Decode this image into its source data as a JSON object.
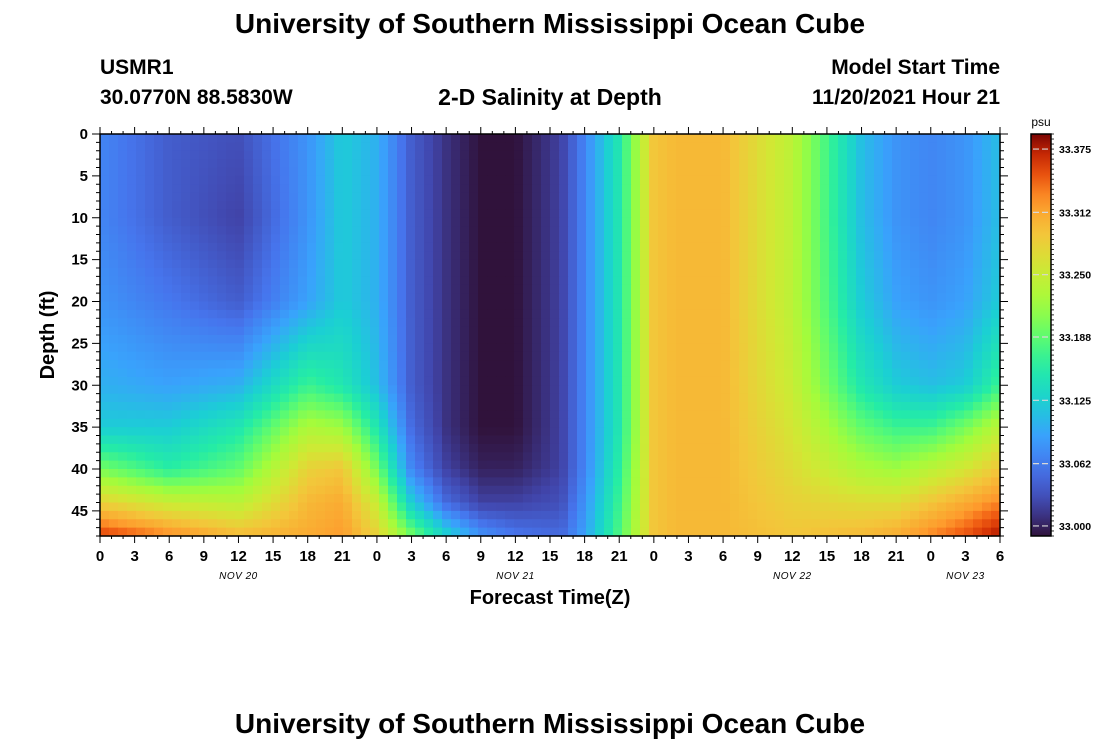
{
  "page": {
    "title": "University of Southern Mississippi Ocean Cube",
    "footer_title": "University of Southern Mississippi Ocean Cube",
    "station_id": "USMR1",
    "location": "30.0770N  88.5830W",
    "model_start_label": "Model Start Time",
    "model_start_value": "11/20/2021 Hour 21"
  },
  "chart_data": {
    "type": "heatmap",
    "title": "2-D Salinity at Depth",
    "xlabel": "Forecast Time(Z)",
    "ylabel": "Depth (ft)",
    "x_range_hours": [
      0,
      78
    ],
    "x_ticks": [
      "0",
      "3",
      "6",
      "9",
      "12",
      "15",
      "18",
      "21",
      "0",
      "3",
      "6",
      "9",
      "12",
      "15",
      "18",
      "21",
      "0",
      "3",
      "6",
      "9",
      "12",
      "15",
      "18",
      "21",
      "0",
      "3",
      "6"
    ],
    "date_labels": [
      {
        "label": "NOV 20",
        "hour": 12
      },
      {
        "label": "NOV 21",
        "hour": 36
      },
      {
        "label": "NOV 22",
        "hour": 60
      },
      {
        "label": "NOV 23",
        "hour": 75
      }
    ],
    "y_range": [
      0,
      48
    ],
    "y_ticks": [
      0,
      5,
      10,
      15,
      20,
      25,
      30,
      35,
      40,
      45
    ],
    "colorbar": {
      "unit": "psu",
      "min": 32.99,
      "max": 33.39,
      "ticks": [
        "33.375",
        "33.312",
        "33.250",
        "33.188",
        "33.125",
        "33.062",
        "33.000"
      ],
      "tick_values": [
        33.375,
        33.312,
        33.25,
        33.188,
        33.125,
        33.062,
        33.0
      ]
    },
    "hours": [
      0,
      6,
      12,
      18,
      21,
      24,
      27,
      30,
      33,
      36,
      40,
      42,
      45,
      48,
      50,
      52,
      54,
      60,
      66,
      69,
      72,
      75,
      78
    ],
    "depths": [
      0,
      10,
      20,
      30,
      35,
      40,
      44,
      48
    ],
    "values": [
      [
        33.07,
        33.04,
        33.03,
        33.08,
        33.12,
        33.1,
        33.04,
        33.01,
        32.99,
        32.99,
        33.02,
        33.07,
        33.15,
        33.29,
        33.3,
        33.3,
        33.3,
        33.24,
        33.11,
        33.08,
        33.07,
        33.08,
        33.11
      ],
      [
        33.07,
        33.04,
        33.02,
        33.08,
        33.12,
        33.1,
        33.04,
        33.01,
        32.99,
        32.99,
        33.02,
        33.07,
        33.15,
        33.29,
        33.3,
        33.3,
        33.3,
        33.24,
        33.11,
        33.08,
        33.07,
        33.08,
        33.11
      ],
      [
        33.08,
        33.06,
        33.04,
        33.09,
        33.12,
        33.1,
        33.04,
        33.01,
        32.99,
        32.99,
        33.02,
        33.07,
        33.15,
        33.29,
        33.3,
        33.3,
        33.3,
        33.24,
        33.12,
        33.09,
        33.08,
        33.09,
        33.12
      ],
      [
        33.1,
        33.09,
        33.1,
        33.17,
        33.15,
        33.11,
        33.04,
        33.01,
        32.99,
        32.99,
        33.02,
        33.07,
        33.15,
        33.29,
        33.3,
        33.3,
        33.3,
        33.25,
        33.15,
        33.12,
        33.11,
        33.12,
        33.17
      ],
      [
        33.12,
        33.12,
        33.15,
        33.23,
        33.22,
        33.15,
        33.05,
        33.01,
        32.99,
        32.99,
        33.02,
        33.07,
        33.15,
        33.29,
        33.3,
        33.3,
        33.3,
        33.26,
        33.19,
        33.17,
        33.17,
        33.2,
        33.24
      ],
      [
        33.2,
        33.16,
        33.19,
        33.28,
        33.29,
        33.2,
        33.07,
        33.02,
        33.0,
        33.0,
        33.02,
        33.07,
        33.16,
        33.29,
        33.3,
        33.3,
        33.3,
        33.27,
        33.23,
        33.22,
        33.24,
        33.26,
        33.29
      ],
      [
        33.28,
        33.25,
        33.24,
        33.3,
        33.31,
        33.25,
        33.12,
        33.05,
        33.02,
        33.02,
        33.03,
        33.08,
        33.17,
        33.29,
        33.3,
        33.3,
        33.3,
        33.28,
        33.27,
        33.27,
        33.29,
        33.31,
        33.33
      ],
      [
        33.36,
        33.33,
        33.3,
        33.31,
        33.32,
        33.28,
        33.2,
        33.13,
        33.08,
        33.06,
        33.05,
        33.09,
        33.18,
        33.29,
        33.3,
        33.3,
        33.3,
        33.29,
        33.3,
        33.31,
        33.33,
        33.35,
        33.38
      ]
    ]
  }
}
